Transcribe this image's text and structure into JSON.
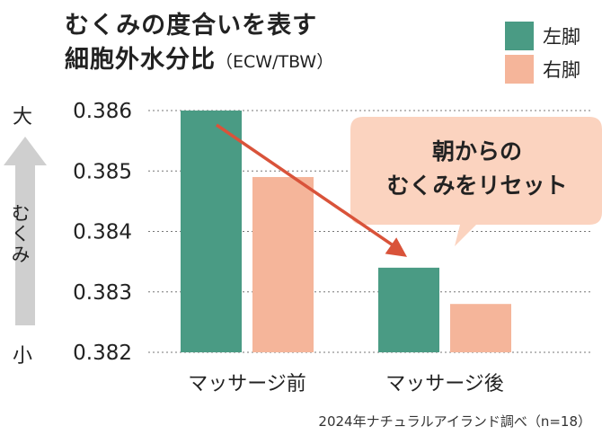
{
  "chart_data": {
    "type": "bar",
    "title_line1": "むくみの度合いを表す",
    "title_line2": "細胞外水分比",
    "title_suffix": "（ECW/TBW）",
    "categories": [
      "マッサージ前",
      "マッサージ後"
    ],
    "series": [
      {
        "name": "左脚",
        "color": "#4a9b84",
        "values": [
          0.386,
          0.3834
        ]
      },
      {
        "name": "右脚",
        "color": "#f5b59a",
        "values": [
          0.3849,
          0.3828
        ]
      }
    ],
    "ylim": [
      0.382,
      0.386
    ],
    "yticks": [
      "0.386",
      "0.385",
      "0.384",
      "0.383",
      "0.382"
    ],
    "ytick_values": [
      0.386,
      0.385,
      0.384,
      0.383,
      0.382
    ],
    "grid": "horizontal-dotted",
    "legend_position": "top-right",
    "side_axis": {
      "top": "大",
      "bottom": "小",
      "label": "むくみ"
    },
    "annotation": "朝からの\nむくみをリセット",
    "source": "2024年ナチュラルアイランド調べ（n=18）"
  },
  "colors": {
    "left_leg": "#4a9b84",
    "right_leg": "#f5b59a",
    "arrow": "#d9533a",
    "callout_bg": "#fbd3bf",
    "side_arrow": "#cfcfcf",
    "grid": "#777777"
  }
}
